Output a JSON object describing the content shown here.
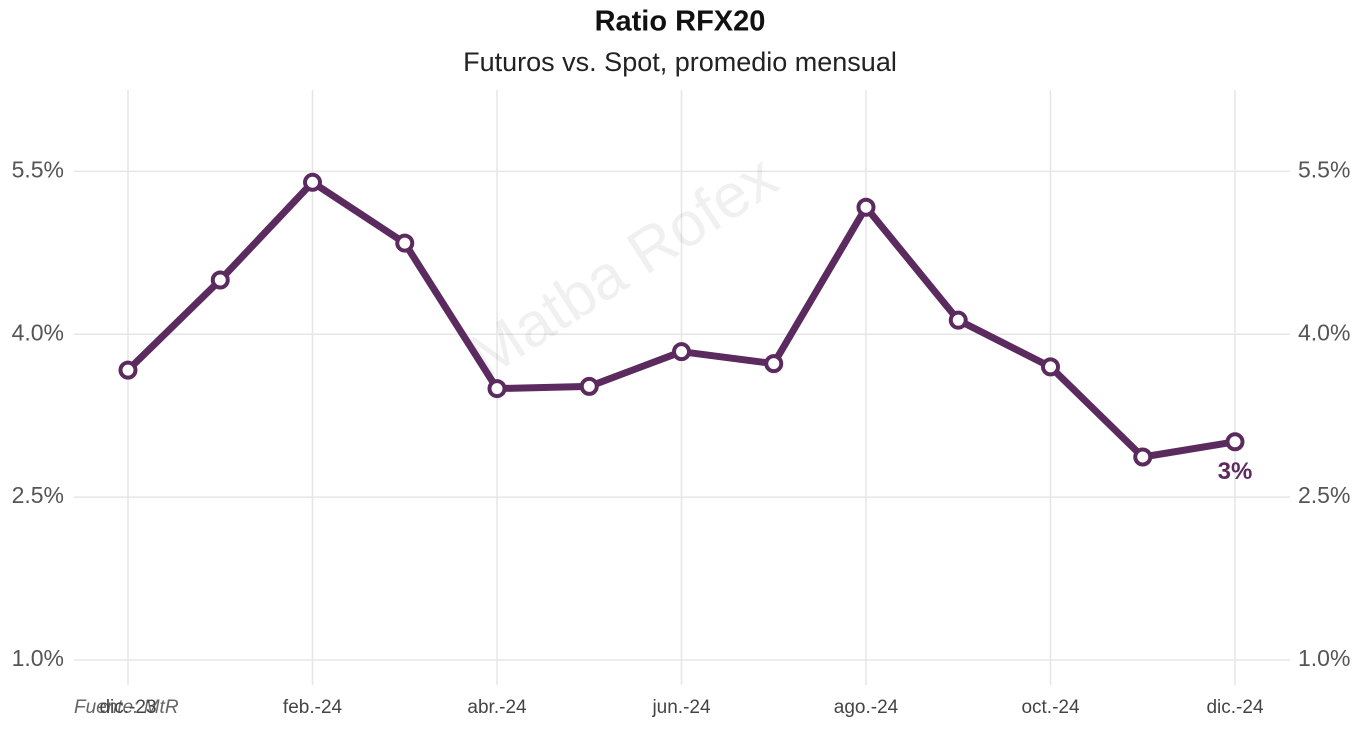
{
  "chart_data": {
    "type": "line",
    "title": "Ratio RFX20",
    "subtitle": "Futuros vs. Spot, promedio mensual",
    "source": "Fuente: MtR",
    "watermark": "Matba Rofex",
    "categories": [
      "dic.-23",
      null,
      "feb.-24",
      null,
      "abr.-24",
      null,
      "jun.-24",
      null,
      "ago.-24",
      null,
      "oct.-24",
      null,
      "dic.-24"
    ],
    "series": [
      {
        "name": "Ratio RFX20",
        "color": "#5b2a5e",
        "values": [
          3.67,
          4.5,
          5.4,
          4.84,
          3.5,
          3.52,
          3.84,
          3.73,
          5.17,
          4.13,
          3.7,
          2.87,
          3.01
        ],
        "value_labels": [
          null,
          null,
          null,
          null,
          null,
          null,
          null,
          null,
          null,
          null,
          null,
          null,
          "3%"
        ]
      }
    ],
    "ylim": [
      0.77,
      6.25
    ],
    "yticks": [
      {
        "value": 1.0,
        "label": "1.0%"
      },
      {
        "value": 2.5,
        "label": "2.5%"
      },
      {
        "value": 4.0,
        "label": "4.0%"
      },
      {
        "value": 5.5,
        "label": "5.5%"
      }
    ],
    "grid": true
  }
}
